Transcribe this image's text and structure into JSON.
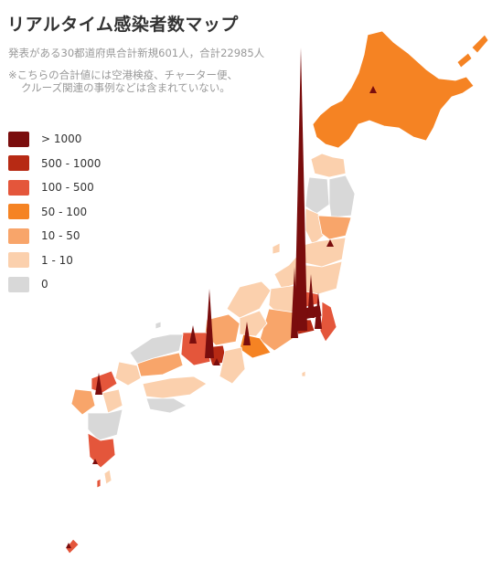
{
  "header": {
    "title": "リアルタイム感染者数マップ",
    "subtitle": "発表がある30都道府県合計新規601人，合計22985人",
    "note_line1": "※こちらの合計値には空港検疫、チャーター便、",
    "note_line2": "クルーズ関連の事例などは含まれていない。"
  },
  "legend": [
    {
      "label": "> 1000",
      "color": "#7a0d0d"
    },
    {
      "label": "500 - 1000",
      "color": "#b72a14"
    },
    {
      "label": "100 - 500",
      "color": "#e4563b"
    },
    {
      "label": "50 - 100",
      "color": "#f58323"
    },
    {
      "label": "10 - 50",
      "color": "#f8a56a"
    },
    {
      "label": "1 - 10",
      "color": "#fbd0ad"
    },
    {
      "label": "0",
      "color": "#d8d8d8"
    }
  ]
}
